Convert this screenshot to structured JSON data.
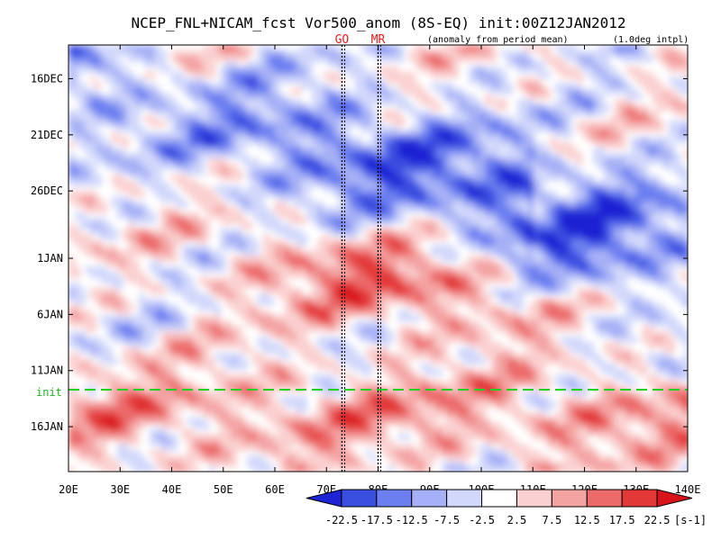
{
  "chart_data": {
    "type": "heatmap",
    "title": "NCEP_FNL+NICAM_fcst Vor500_anom (8S-EQ) init:00Z12JAN2012",
    "subtitle": "(anomaly from period mean)",
    "note": "(1.0deg intpl)",
    "xlabel": "",
    "ylabel": "",
    "x_ticks": [
      "20E",
      "30E",
      "40E",
      "50E",
      "60E",
      "70E",
      "80E",
      "90E",
      "100E",
      "110E",
      "120E",
      "130E",
      "140E"
    ],
    "x_values": [
      20,
      30,
      40,
      50,
      60,
      70,
      80,
      90,
      100,
      110,
      120,
      130,
      140
    ],
    "xlim": [
      20,
      140
    ],
    "y_ticks": [
      "16DEC",
      "21DEC",
      "26DEC",
      "1JAN",
      "6JAN",
      "11JAN",
      "16JAN"
    ],
    "ylim": [
      "13DEC2011",
      "20JAN2012"
    ],
    "init_label": "init",
    "init_date": "12JAN2012",
    "markers": [
      {
        "label": "GO",
        "lon": 73
      },
      {
        "label": "MR",
        "lon": 80
      }
    ],
    "colorbar": {
      "levels": [
        "-22.5",
        "-17.5",
        "-12.5",
        "-7.5",
        "-2.5",
        "2.5",
        "7.5",
        "12.5",
        "17.5",
        "22.5"
      ],
      "unit": "[s-1]",
      "colors": [
        "#1c24d4",
        "#3a4ee0",
        "#6c7ff0",
        "#a6b0f6",
        "#d2d8fb",
        "#ffffff",
        "#fbd0d0",
        "#f4a3a3",
        "#ec6a6a",
        "#e33838",
        "#d8141a"
      ]
    }
  }
}
